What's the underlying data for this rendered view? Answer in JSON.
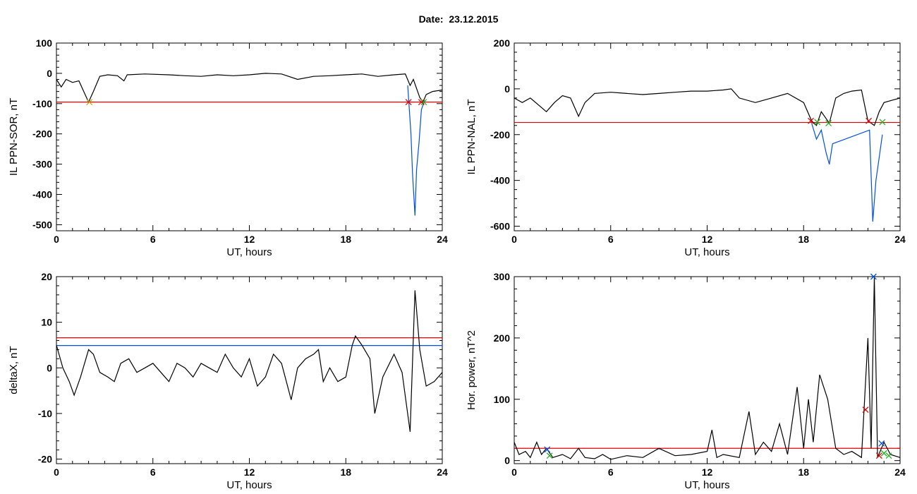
{
  "header": {
    "date_label": "Date:",
    "date_value": "23.12.2015"
  },
  "chart_data": [
    {
      "type": "line",
      "xlabel": "UT, hours",
      "ylabel": "IL PPN-SOR, nT",
      "xlim": [
        0,
        24
      ],
      "ylim": [
        -520,
        100
      ],
      "xticks": [
        0,
        6,
        12,
        18,
        24
      ],
      "yticks": [
        100,
        0,
        -100,
        -200,
        -300,
        -400,
        -500
      ],
      "threshold": {
        "value": -95,
        "color": "#e00000"
      },
      "series": [
        {
          "color": "#000000",
          "points": [
            [
              0,
              -20
            ],
            [
              0.3,
              -45
            ],
            [
              0.6,
              -20
            ],
            [
              1.0,
              -30
            ],
            [
              1.4,
              -25
            ],
            [
              1.7,
              -60
            ],
            [
              2.0,
              -95
            ],
            [
              2.3,
              -60
            ],
            [
              2.7,
              -10
            ],
            [
              3.2,
              -5
            ],
            [
              3.8,
              -8
            ],
            [
              4.2,
              -25
            ],
            [
              4.4,
              -5
            ],
            [
              5.5,
              -2
            ],
            [
              7,
              -5
            ],
            [
              8,
              -8
            ],
            [
              9,
              -10
            ],
            [
              10,
              -5
            ],
            [
              11,
              -8
            ],
            [
              12,
              -5
            ],
            [
              13,
              0
            ],
            [
              14,
              -2
            ],
            [
              15,
              -20
            ],
            [
              16,
              -10
            ],
            [
              17,
              -8
            ],
            [
              18,
              -5
            ],
            [
              19,
              -2
            ],
            [
              20,
              -10
            ],
            [
              21,
              -5
            ],
            [
              21.7,
              -2
            ],
            [
              22.0,
              -40
            ],
            [
              22.2,
              -20
            ],
            [
              22.6,
              -80
            ],
            [
              22.8,
              -95
            ],
            [
              23.0,
              -70
            ],
            [
              23.4,
              -60
            ],
            [
              24,
              -55
            ]
          ]
        },
        {
          "color": "#0050e0",
          "points": [
            [
              21.85,
              -40
            ],
            [
              22.05,
              -200
            ],
            [
              22.15,
              -330
            ],
            [
              22.3,
              -470
            ],
            [
              22.4,
              -320
            ],
            [
              22.55,
              -230
            ],
            [
              22.7,
              -120
            ],
            [
              22.9,
              -90
            ]
          ]
        }
      ],
      "markers": [
        {
          "x": 2.05,
          "y": -95,
          "color": "#d0a000"
        },
        {
          "x": 21.9,
          "y": -95,
          "color": "#e00000"
        },
        {
          "x": 22.7,
          "y": -95,
          "color": "#e00000"
        },
        {
          "x": 22.85,
          "y": -95,
          "color": "#20b020"
        }
      ]
    },
    {
      "type": "line",
      "xlabel": "UT, hours",
      "ylabel": "IL PPN-NAL, nT",
      "xlim": [
        0,
        24
      ],
      "ylim": [
        -620,
        200
      ],
      "xticks": [
        0,
        6,
        12,
        18,
        24
      ],
      "yticks": [
        200,
        0,
        -200,
        -400,
        -600
      ],
      "threshold": {
        "value": -147,
        "color": "#e00000"
      },
      "series": [
        {
          "color": "#000000",
          "points": [
            [
              0,
              -40
            ],
            [
              0.5,
              -60
            ],
            [
              1,
              -40
            ],
            [
              1.5,
              -70
            ],
            [
              2,
              -100
            ],
            [
              2.5,
              -60
            ],
            [
              3,
              -30
            ],
            [
              3.5,
              -40
            ],
            [
              4,
              -120
            ],
            [
              4.4,
              -60
            ],
            [
              5,
              -20
            ],
            [
              6,
              -15
            ],
            [
              7,
              -20
            ],
            [
              8,
              -25
            ],
            [
              9,
              -20
            ],
            [
              10,
              -15
            ],
            [
              11,
              -10
            ],
            [
              12,
              -10
            ],
            [
              13,
              -5
            ],
            [
              13.5,
              0
            ],
            [
              14,
              -40
            ],
            [
              15,
              -60
            ],
            [
              16,
              -40
            ],
            [
              17,
              -20
            ],
            [
              18,
              -60
            ],
            [
              18.5,
              -140
            ],
            [
              18.8,
              -160
            ],
            [
              19.1,
              -100
            ],
            [
              19.6,
              -150
            ],
            [
              20,
              -40
            ],
            [
              20.5,
              -20
            ],
            [
              21,
              -10
            ],
            [
              21.6,
              -5
            ],
            [
              22,
              -140
            ],
            [
              22.4,
              -160
            ],
            [
              22.7,
              -100
            ],
            [
              23,
              -60
            ],
            [
              23.5,
              -50
            ],
            [
              24,
              -40
            ]
          ]
        },
        {
          "color": "#0050e0",
          "points": [
            [
              18.5,
              -150
            ],
            [
              18.8,
              -220
            ],
            [
              19.1,
              -180
            ],
            [
              19.4,
              -280
            ],
            [
              19.6,
              -330
            ],
            [
              19.8,
              -240
            ],
            [
              22.1,
              -180
            ],
            [
              22.3,
              -580
            ],
            [
              22.5,
              -400
            ],
            [
              22.7,
              -300
            ],
            [
              22.9,
              -200
            ]
          ]
        }
      ],
      "markers": [
        {
          "x": 18.45,
          "y": -140,
          "color": "#e00000"
        },
        {
          "x": 18.85,
          "y": -145,
          "color": "#20b020"
        },
        {
          "x": 19.55,
          "y": -150,
          "color": "#20b020"
        },
        {
          "x": 22.05,
          "y": -140,
          "color": "#e00000"
        },
        {
          "x": 22.9,
          "y": -145,
          "color": "#20b020"
        }
      ]
    },
    {
      "type": "line",
      "xlabel": "UT, hours",
      "ylabel": "deltaX, nT",
      "xlim": [
        0,
        24
      ],
      "ylim": [
        -21,
        20
      ],
      "xticks": [
        0,
        6,
        12,
        18,
        24
      ],
      "yticks": [
        20,
        10,
        0,
        -10,
        -20
      ],
      "threshold": {
        "value": 6.6,
        "color": "#e00000"
      },
      "threshold2": {
        "value": 4.9,
        "color": "#0050e0"
      },
      "series": [
        {
          "color": "#000000",
          "points": [
            [
              0,
              5
            ],
            [
              0.4,
              0
            ],
            [
              0.8,
              -3
            ],
            [
              1.1,
              -6
            ],
            [
              1.5,
              -2
            ],
            [
              2,
              4
            ],
            [
              2.3,
              3
            ],
            [
              2.7,
              -1
            ],
            [
              3.2,
              -2
            ],
            [
              3.6,
              -3
            ],
            [
              4,
              1
            ],
            [
              4.5,
              2
            ],
            [
              5,
              -1
            ],
            [
              5.5,
              0
            ],
            [
              6,
              1
            ],
            [
              6.5,
              -1
            ],
            [
              7,
              -3
            ],
            [
              7.5,
              1
            ],
            [
              8,
              0
            ],
            [
              8.5,
              -2
            ],
            [
              9,
              1
            ],
            [
              9.5,
              0
            ],
            [
              10,
              -1
            ],
            [
              10.5,
              3
            ],
            [
              11,
              0
            ],
            [
              11.5,
              -2
            ],
            [
              12,
              2
            ],
            [
              12.5,
              -4
            ],
            [
              13,
              -2
            ],
            [
              13.5,
              3
            ],
            [
              14,
              1
            ],
            [
              14.6,
              -7
            ],
            [
              15,
              0
            ],
            [
              15.5,
              2
            ],
            [
              16,
              3
            ],
            [
              16.3,
              4
            ],
            [
              16.6,
              -3
            ],
            [
              17,
              0
            ],
            [
              17.5,
              -3
            ],
            [
              18,
              -2
            ],
            [
              18.4,
              5
            ],
            [
              18.6,
              7
            ],
            [
              19,
              5
            ],
            [
              19.5,
              2
            ],
            [
              19.8,
              -10
            ],
            [
              20.3,
              -2
            ],
            [
              21,
              3
            ],
            [
              21.5,
              -1
            ],
            [
              22,
              -14
            ],
            [
              22.3,
              17
            ],
            [
              22.6,
              4
            ],
            [
              23,
              -4
            ],
            [
              23.5,
              -3
            ],
            [
              24,
              -1
            ]
          ]
        }
      ],
      "markers": []
    },
    {
      "type": "line",
      "xlabel": "UT, hours",
      "ylabel": "Hor. power, nT^2",
      "xlim": [
        0,
        24
      ],
      "ylim": [
        -5,
        300
      ],
      "xticks": [
        0,
        6,
        12,
        18,
        24
      ],
      "yticks": [
        300,
        200,
        100,
        0
      ],
      "threshold": {
        "value": 20,
        "color": "#e00000"
      },
      "series": [
        {
          "color": "#000000",
          "points": [
            [
              0,
              30
            ],
            [
              0.3,
              10
            ],
            [
              0.7,
              15
            ],
            [
              1.0,
              5
            ],
            [
              1.4,
              30
            ],
            [
              1.7,
              10
            ],
            [
              2.0,
              20
            ],
            [
              2.4,
              5
            ],
            [
              3,
              10
            ],
            [
              3.5,
              3
            ],
            [
              4,
              20
            ],
            [
              4.4,
              5
            ],
            [
              5,
              3
            ],
            [
              5.5,
              10
            ],
            [
              6,
              2
            ],
            [
              7,
              8
            ],
            [
              8,
              5
            ],
            [
              9,
              20
            ],
            [
              10,
              8
            ],
            [
              11,
              10
            ],
            [
              12,
              15
            ],
            [
              12.3,
              50
            ],
            [
              12.6,
              5
            ],
            [
              13,
              10
            ],
            [
              14,
              5
            ],
            [
              14.6,
              80
            ],
            [
              15,
              10
            ],
            [
              15.5,
              30
            ],
            [
              16,
              15
            ],
            [
              16.5,
              60
            ],
            [
              17,
              10
            ],
            [
              17.6,
              120
            ],
            [
              18,
              20
            ],
            [
              18.3,
              100
            ],
            [
              18.6,
              30
            ],
            [
              19,
              140
            ],
            [
              19.5,
              100
            ],
            [
              20,
              20
            ],
            [
              20.5,
              10
            ],
            [
              21,
              15
            ],
            [
              21.6,
              5
            ],
            [
              22.0,
              200
            ],
            [
              22.2,
              20
            ],
            [
              22.4,
              300
            ],
            [
              22.6,
              5
            ],
            [
              23,
              30
            ],
            [
              23.4,
              10
            ],
            [
              24,
              5
            ]
          ]
        }
      ],
      "markers": [
        {
          "x": 2.05,
          "y": 18,
          "color": "#0050e0"
        },
        {
          "x": 2.2,
          "y": 8,
          "color": "#20b020"
        },
        {
          "x": 21.85,
          "y": 83,
          "color": "#e00000"
        },
        {
          "x": 22.35,
          "y": 300,
          "color": "#0050e0"
        },
        {
          "x": 22.85,
          "y": 28,
          "color": "#0050e0"
        },
        {
          "x": 22.7,
          "y": 8,
          "color": "#e00000"
        },
        {
          "x": 23.0,
          "y": 12,
          "color": "#20b020"
        },
        {
          "x": 23.3,
          "y": 8,
          "color": "#20b020"
        }
      ]
    }
  ]
}
